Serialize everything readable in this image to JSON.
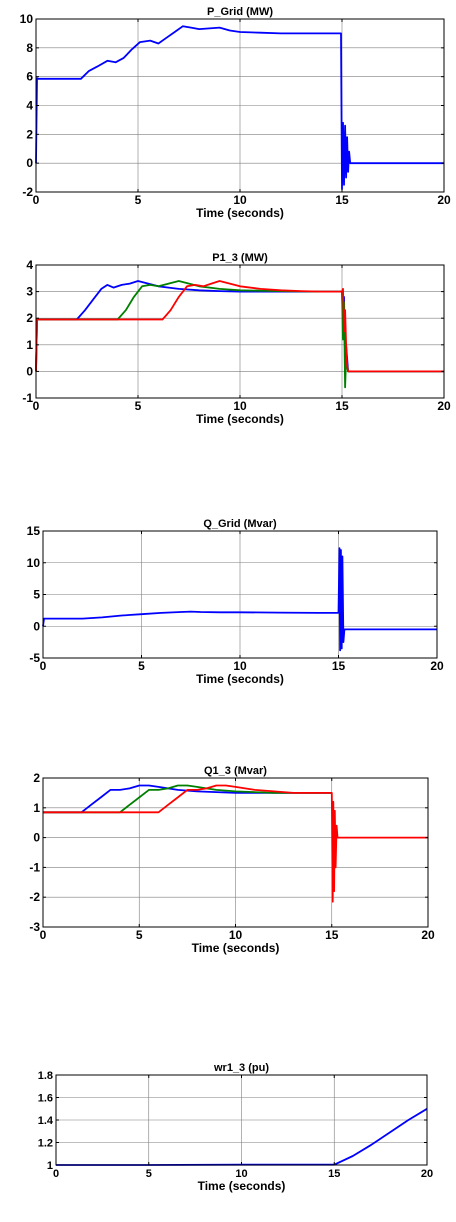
{
  "chart_data": [
    {
      "type": "line",
      "title": "P_Grid (MW)",
      "xlabel": "Time (seconds)",
      "ylabel": "",
      "xlim": [
        0,
        20
      ],
      "ylim": [
        -2,
        10
      ],
      "xticks": [
        "0",
        "5",
        "10",
        "15",
        "20"
      ],
      "yticks": [
        "-2",
        "0",
        "2",
        "4",
        "6",
        "8",
        "10"
      ],
      "grid": true,
      "series": [
        {
          "color": "#0000ff",
          "x": [
            0,
            0.05,
            0.1,
            2.2,
            2.6,
            3.0,
            3.5,
            3.9,
            4.3,
            4.7,
            5.1,
            5.6,
            6.0,
            6.4,
            6.8,
            7.2,
            7.6,
            8.0,
            8.5,
            9.0,
            9.5,
            10.0,
            11.0,
            12.0,
            13.0,
            14.0,
            14.95,
            15.0,
            15.05,
            15.1,
            15.15,
            15.2,
            15.25,
            15.3,
            15.35,
            15.4,
            20
          ],
          "y": [
            0,
            5.9,
            5.85,
            5.85,
            6.4,
            6.7,
            7.1,
            7.0,
            7.3,
            7.9,
            8.4,
            8.5,
            8.3,
            8.7,
            9.1,
            9.5,
            9.4,
            9.3,
            9.35,
            9.4,
            9.2,
            9.1,
            9.05,
            9.0,
            9.0,
            9.0,
            9.0,
            -1.8,
            2.8,
            -1.5,
            2.6,
            -1.0,
            1.8,
            -0.6,
            0.8,
            0.0,
            0.0
          ]
        }
      ]
    },
    {
      "type": "line",
      "title": "P1_3 (MW)",
      "xlabel": "Time (seconds)",
      "ylabel": "",
      "xlim": [
        0,
        20
      ],
      "ylim": [
        -1,
        4
      ],
      "xticks": [
        "0",
        "5",
        "10",
        "15",
        "20"
      ],
      "yticks": [
        "-1",
        "0",
        "1",
        "2",
        "3",
        "4"
      ],
      "grid": true,
      "series": [
        {
          "color": "#0000ff",
          "x": [
            0,
            0.05,
            2.0,
            2.4,
            2.8,
            3.2,
            3.5,
            3.8,
            4.2,
            4.6,
            5.0,
            5.5,
            6.0,
            6.5,
            7.0,
            8.0,
            9.0,
            10.0,
            12.0,
            14.0,
            15.0,
            15.05,
            15.1,
            15.15,
            15.2,
            15.3,
            20
          ],
          "y": [
            0,
            1.95,
            1.95,
            2.3,
            2.7,
            3.1,
            3.25,
            3.15,
            3.25,
            3.3,
            3.4,
            3.3,
            3.2,
            3.15,
            3.1,
            3.05,
            3.02,
            3.0,
            3.0,
            3.0,
            3.0,
            2.0,
            2.8,
            0.5,
            1.0,
            0.0,
            0.0
          ]
        },
        {
          "color": "#008000",
          "x": [
            0,
            0.05,
            4.0,
            4.4,
            4.8,
            5.2,
            5.6,
            6.0,
            6.5,
            7.0,
            7.5,
            8.0,
            9.0,
            10.0,
            12.0,
            14.0,
            15.0,
            15.05,
            15.1,
            15.15,
            15.2,
            15.3,
            20
          ],
          "y": [
            0,
            1.95,
            1.95,
            2.3,
            2.8,
            3.2,
            3.25,
            3.2,
            3.3,
            3.4,
            3.3,
            3.2,
            3.1,
            3.05,
            3.02,
            3.0,
            3.0,
            1.2,
            2.6,
            -0.6,
            0.5,
            0.0,
            0.0
          ]
        },
        {
          "color": "#ff0000",
          "x": [
            0,
            0.05,
            1.0,
            6.2,
            6.6,
            7.0,
            7.4,
            7.8,
            8.2,
            8.6,
            9.0,
            9.5,
            10.0,
            11.0,
            12.0,
            13.0,
            14.0,
            15.0,
            15.05,
            15.1,
            15.15,
            15.2,
            15.25,
            15.3,
            20
          ],
          "y": [
            0,
            1.95,
            1.95,
            1.95,
            2.3,
            2.8,
            3.2,
            3.25,
            3.2,
            3.3,
            3.4,
            3.3,
            3.2,
            3.1,
            3.05,
            3.02,
            3.0,
            3.0,
            3.1,
            1.5,
            2.3,
            1.0,
            0.2,
            0.0,
            0.0
          ]
        }
      ]
    },
    {
      "type": "line",
      "title": "Q_Grid (Mvar)",
      "xlabel": "Time (seconds)",
      "ylabel": "",
      "xlim": [
        0,
        20
      ],
      "ylim": [
        -5,
        15
      ],
      "xticks": [
        "0",
        "5",
        "10",
        "15",
        "20"
      ],
      "yticks": [
        "-5",
        "0",
        "5",
        "10",
        "15"
      ],
      "grid": true,
      "series": [
        {
          "color": "#0000ff",
          "x": [
            0,
            0.05,
            2.0,
            3.0,
            4.0,
            5.0,
            6.0,
            7.0,
            7.5,
            8.0,
            9.0,
            10.0,
            12.0,
            14.0,
            15.0,
            15.05,
            15.08,
            15.12,
            15.16,
            15.2,
            15.25,
            15.3,
            15.35,
            20
          ],
          "y": [
            0.0,
            1.2,
            1.2,
            1.4,
            1.7,
            1.9,
            2.1,
            2.25,
            2.3,
            2.25,
            2.2,
            2.2,
            2.15,
            2.1,
            2.1,
            12.3,
            -3.8,
            12.0,
            -3.5,
            11.0,
            -2.5,
            -0.5,
            -0.5,
            -0.5
          ]
        }
      ]
    },
    {
      "type": "line",
      "title": "Q1_3 (Mvar)",
      "xlabel": "Time (seconds)",
      "ylabel": "",
      "xlim": [
        0,
        20
      ],
      "ylim": [
        -3,
        2
      ],
      "xticks": [
        "0",
        "5",
        "10",
        "15",
        "20"
      ],
      "yticks": [
        "-3",
        "-2",
        "-1",
        "0",
        "1",
        "2"
      ],
      "grid": true,
      "series": [
        {
          "color": "#0000ff",
          "x": [
            0,
            2.0,
            2.5,
            3.0,
            3.5,
            4.0,
            4.5,
            5.0,
            5.5,
            6.0,
            7.0,
            8.0,
            10.0,
            12.0,
            15.0
          ],
          "y": [
            0.85,
            0.85,
            1.1,
            1.35,
            1.6,
            1.6,
            1.65,
            1.75,
            1.75,
            1.7,
            1.6,
            1.55,
            1.5,
            1.5,
            1.5
          ]
        },
        {
          "color": "#008000",
          "x": [
            0,
            4.0,
            4.5,
            5.0,
            5.5,
            6.0,
            6.5,
            7.0,
            7.5,
            8.0,
            9.0,
            10.0,
            12.0,
            15.0
          ],
          "y": [
            0.85,
            0.85,
            1.1,
            1.35,
            1.6,
            1.6,
            1.65,
            1.75,
            1.75,
            1.7,
            1.6,
            1.55,
            1.5,
            1.5
          ]
        },
        {
          "color": "#ff0000",
          "x": [
            0,
            6.0,
            6.5,
            7.0,
            7.5,
            8.0,
            8.5,
            9.0,
            9.5,
            10.0,
            11.0,
            12.0,
            13.0,
            14.0,
            15.0,
            15.05,
            15.08,
            15.12,
            15.16,
            15.2,
            15.25,
            15.3,
            20
          ],
          "y": [
            0.85,
            0.85,
            1.1,
            1.35,
            1.6,
            1.6,
            1.65,
            1.75,
            1.75,
            1.7,
            1.6,
            1.55,
            1.5,
            1.5,
            1.5,
            -2.15,
            1.2,
            -1.8,
            0.9,
            -1.0,
            0.4,
            0.0,
            0.0
          ]
        }
      ]
    },
    {
      "type": "line",
      "title": "wr1_3 (pu)",
      "xlabel": "Time (seconds)",
      "ylabel": "",
      "xlim": [
        0,
        20
      ],
      "ylim": [
        1,
        1.8
      ],
      "xticks": [
        "0",
        "5",
        "10",
        "15",
        "20"
      ],
      "yticks": [
        "1",
        "1.2",
        "1.4",
        "1.6",
        "1.8"
      ],
      "grid": true,
      "series": [
        {
          "color": "#0000ff",
          "x": [
            0,
            5,
            10,
            15,
            16,
            17,
            18,
            19,
            20
          ],
          "y": [
            1.0,
            1.0,
            1.003,
            1.003,
            1.08,
            1.18,
            1.29,
            1.4,
            1.5
          ]
        }
      ]
    }
  ]
}
